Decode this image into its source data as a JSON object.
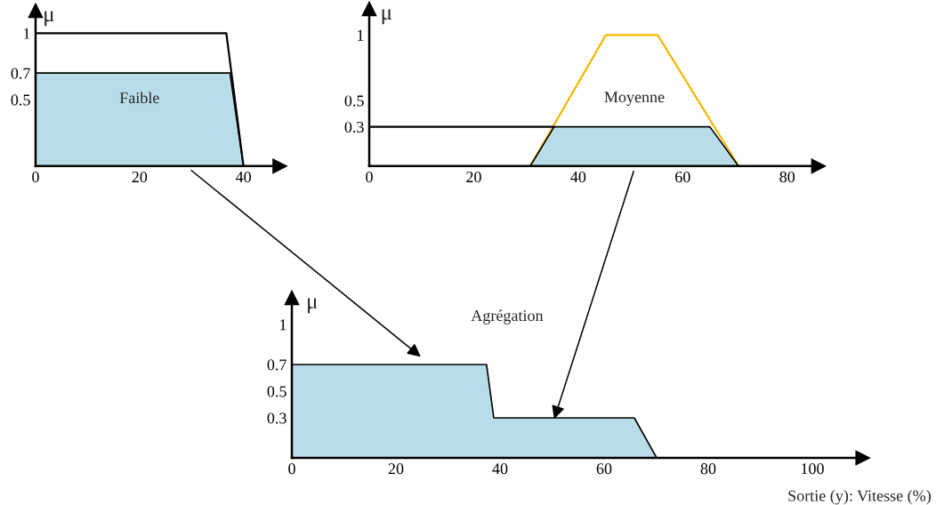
{
  "chart_data": [
    {
      "type": "area",
      "ylabel": "μ",
      "xlim": [
        0,
        47
      ],
      "ylim": [
        0,
        1.17
      ],
      "xticks": [
        0,
        20,
        40
      ],
      "yticks": [
        0.5,
        0.7,
        1
      ],
      "series": [
        {
          "type": "line",
          "color": "#000000",
          "x": [
            0,
            36.7,
            40
          ],
          "values": [
            1,
            1,
            0
          ]
        },
        {
          "name": "Faible",
          "color": "#b8dde8",
          "x": [
            0,
            37.4,
            40
          ],
          "values": [
            0.7,
            0.7,
            0
          ]
        }
      ]
    },
    {
      "type": "area",
      "ylabel": "μ",
      "xlim": [
        0,
        86
      ],
      "ylim": [
        0,
        1.2
      ],
      "xticks": [
        0,
        20,
        40,
        60,
        80
      ],
      "yticks": [
        0.3,
        0.5,
        1
      ],
      "series": [
        {
          "type": "line",
          "color": "#f5b800",
          "x": [
            30.8,
            45.3,
            55.2,
            70.7
          ],
          "values": [
            0,
            1,
            1,
            0
          ]
        },
        {
          "name": "Moyenne",
          "color": "#b8dde8",
          "x": [
            30.8,
            35.4,
            65.2,
            70.7
          ],
          "values": [
            0,
            0.3,
            0.3,
            0
          ]
        },
        {
          "type": "line",
          "color": "#000000",
          "x": [
            0,
            35.4
          ],
          "values": [
            0.3,
            0.3
          ]
        }
      ]
    },
    {
      "type": "area",
      "title": "Agrégation",
      "ylabel": "μ",
      "xlabel": "Sortie (y): Vitesse (%)",
      "xlim": [
        0,
        109.7
      ],
      "ylim": [
        0,
        1.2
      ],
      "xticks": [
        0,
        20,
        40,
        60,
        80,
        100
      ],
      "yticks": [
        0.3,
        0.5,
        0.7,
        1
      ],
      "series": [
        {
          "color": "#b8dde8",
          "x": [
            0,
            37.4,
            38.8,
            65.8,
            70.1
          ],
          "values": [
            0.7,
            0.7,
            0.3,
            0.3,
            0
          ]
        }
      ]
    }
  ]
}
